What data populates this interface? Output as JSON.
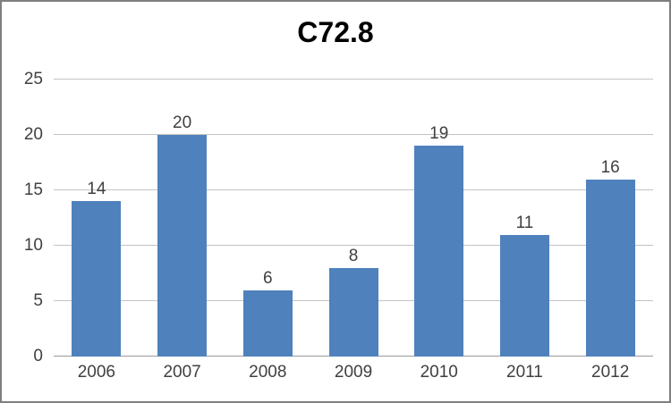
{
  "chart_data": {
    "type": "bar",
    "title": "C72.8",
    "categories": [
      "2006",
      "2007",
      "2008",
      "2009",
      "2010",
      "2011",
      "2012"
    ],
    "values": [
      14,
      20,
      6,
      8,
      19,
      11,
      16
    ],
    "ylim": [
      0,
      25
    ],
    "yticks": [
      0,
      5,
      10,
      15,
      20,
      25
    ],
    "grid": true,
    "legend": "none",
    "data_labels": true,
    "colors": {
      "bar": "#4f81bd",
      "gridline": "#c3c3c3",
      "axis_line": "#9a9a9a",
      "label_text": "#404040",
      "title_text": "#000000",
      "background": "#ffffff",
      "frame_border": "#7f7f7f"
    }
  }
}
